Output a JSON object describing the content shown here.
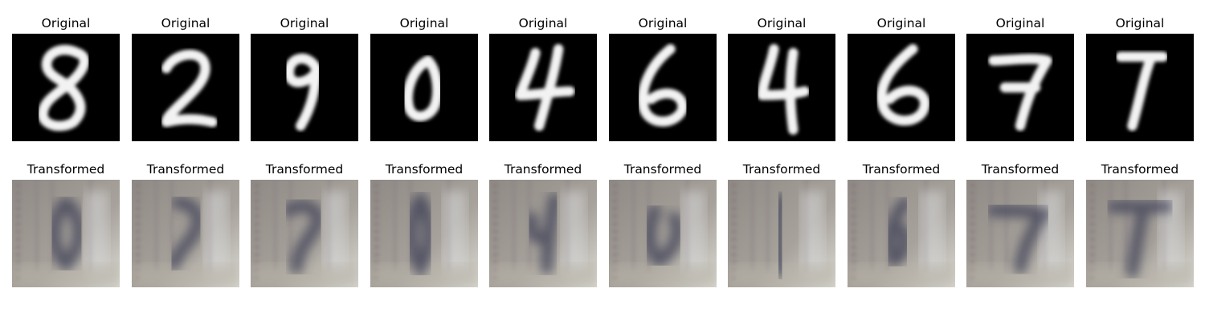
{
  "rows": [
    {
      "kind": "original",
      "panels": [
        {
          "title": "Original",
          "image": "handwritten-digit-8"
        },
        {
          "title": "Original",
          "image": "handwritten-digit-2"
        },
        {
          "title": "Original",
          "image": "handwritten-digit-9"
        },
        {
          "title": "Original",
          "image": "handwritten-digit-0"
        },
        {
          "title": "Original",
          "image": "handwritten-digit-4"
        },
        {
          "title": "Original",
          "image": "handwritten-digit-6"
        },
        {
          "title": "Original",
          "image": "handwritten-digit-4"
        },
        {
          "title": "Original",
          "image": "handwritten-digit-6"
        },
        {
          "title": "Original",
          "image": "handwritten-digit-7"
        },
        {
          "title": "Original",
          "image": "handwritten-digit-7"
        }
      ]
    },
    {
      "kind": "transformed",
      "panels": [
        {
          "title": "Transformed",
          "image": "blurry-transformed-8"
        },
        {
          "title": "Transformed",
          "image": "blurry-transformed-2"
        },
        {
          "title": "Transformed",
          "image": "blurry-transformed-9"
        },
        {
          "title": "Transformed",
          "image": "blurry-transformed-0"
        },
        {
          "title": "Transformed",
          "image": "blurry-transformed-4"
        },
        {
          "title": "Transformed",
          "image": "blurry-transformed-6"
        },
        {
          "title": "Transformed",
          "image": "blurry-transformed-4"
        },
        {
          "title": "Transformed",
          "image": "blurry-transformed-6"
        },
        {
          "title": "Transformed",
          "image": "blurry-transformed-7"
        },
        {
          "title": "Transformed",
          "image": "blurry-transformed-7"
        }
      ]
    }
  ],
  "colors": {
    "background": "#ffffff",
    "digit_background": "#000000",
    "digit_stroke": "#f2f2f2",
    "transformed_base": "#8f8a85",
    "transformed_dark": "#3a3d55",
    "transformed_light": "#d9d9d2",
    "transformed_stripe": "#7a6872"
  }
}
